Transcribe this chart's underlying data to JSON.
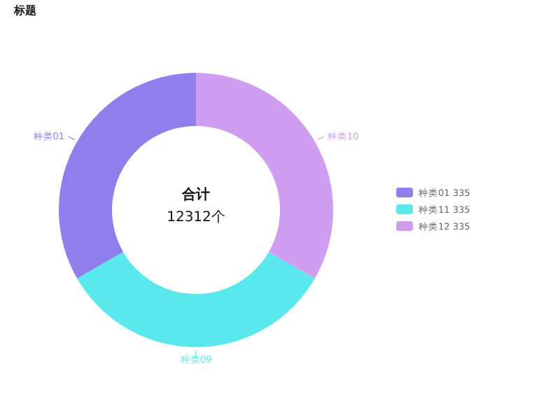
{
  "chart_data": {
    "type": "donut",
    "title": "标题",
    "categories": [
      "种类01",
      "种类11",
      "种类12"
    ],
    "values": [
      335,
      335,
      335
    ],
    "colors": [
      "#8e7fec",
      "#5ae8ec",
      "#d09ef0"
    ],
    "data_labels": true,
    "legend": "right",
    "annotations": [
      "合计",
      "12312个",
      "种类01",
      "种类09",
      "种类10"
    ]
  }
}
